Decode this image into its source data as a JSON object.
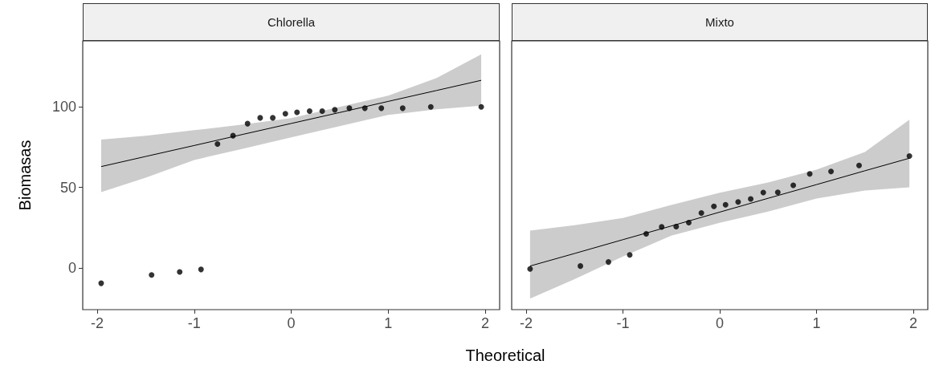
{
  "chart_data": [
    {
      "type": "scatter",
      "title": "Chlorella",
      "xlabel": "Theoretical",
      "ylabel": "Biomasas",
      "marker": "circle",
      "xlim": [
        -2.15,
        2.15
      ],
      "xticks": [
        -2,
        -1,
        0,
        1,
        2
      ],
      "ylim": [
        -26,
        141
      ],
      "yticks": [
        0,
        50,
        100
      ],
      "series": [
        {
          "color": "#000000",
          "x": [
            -1.96,
            -1.44,
            -1.15,
            -0.93,
            -0.76,
            -0.6,
            -0.45,
            -0.32,
            -0.19,
            -0.06,
            0.06,
            0.19,
            0.32,
            0.45,
            0.6,
            0.76,
            0.93,
            1.15,
            1.44,
            1.96
          ],
          "values": [
            -9.6,
            -4.4,
            -2.6,
            -1,
            76.9,
            82.1,
            89.6,
            93.2,
            93.2,
            95.8,
            96.6,
            97.4,
            97.4,
            98.2,
            99.2,
            99.2,
            99.2,
            99.2,
            100,
            100
          ]
        },
        {
          "type": "line",
          "color": "#000000",
          "marker": "none",
          "x": [
            -1.96,
            -1.5,
            -1,
            -0.5,
            0,
            0.5,
            1,
            1.5,
            1.96
          ],
          "values": [
            62.9,
            69.2,
            76,
            82.9,
            89.7,
            96.5,
            103.4,
            110.2,
            116.5
          ],
          "lower": [
            47,
            56,
            67,
            74,
            81,
            88,
            95,
            98.5,
            100.8
          ],
          "upper": [
            79.7,
            82,
            85.5,
            89,
            93,
            100,
            107,
            118,
            132.7
          ]
        }
      ]
    },
    {
      "type": "scatter",
      "title": "Mixto",
      "marker": "circle",
      "xlim": [
        -2.15,
        2.15
      ],
      "xticks": [
        -2,
        -1,
        0,
        1,
        2
      ],
      "ylim": [
        -26,
        141
      ],
      "yticks": [
        0,
        50,
        100
      ],
      "tick_labels": "x",
      "series": [
        {
          "color": "#000000",
          "x": [
            -1.96,
            -1.44,
            -1.15,
            -0.93,
            -0.76,
            -0.6,
            -0.45,
            -0.32,
            -0.19,
            -0.06,
            0.06,
            0.19,
            0.32,
            0.45,
            0.6,
            0.76,
            0.93,
            1.15,
            1.44,
            1.96
          ],
          "values": [
            -0.7,
            1.1,
            3.6,
            8,
            21.1,
            25.4,
            25.6,
            28.1,
            34.1,
            38.2,
            39.2,
            40.9,
            42.8,
            46.8,
            46.9,
            51.3,
            58.4,
            59.9,
            63.6,
            69.5
          ]
        },
        {
          "type": "line",
          "color": "#000000",
          "marker": "none",
          "x": [
            -1.96,
            -1.5,
            -1,
            -0.5,
            0,
            0.5,
            1,
            1.5,
            1.96
          ],
          "values": [
            1.1,
            8.9,
            17.5,
            26,
            34.6,
            43.2,
            51.7,
            60.3,
            68.1
          ],
          "lower": [
            -19.2,
            -7,
            7,
            20,
            28,
            35,
            43,
            48,
            50
          ],
          "upper": [
            23.1,
            26.5,
            31,
            39,
            46.7,
            53,
            61,
            72,
            92
          ]
        }
      ]
    }
  ]
}
